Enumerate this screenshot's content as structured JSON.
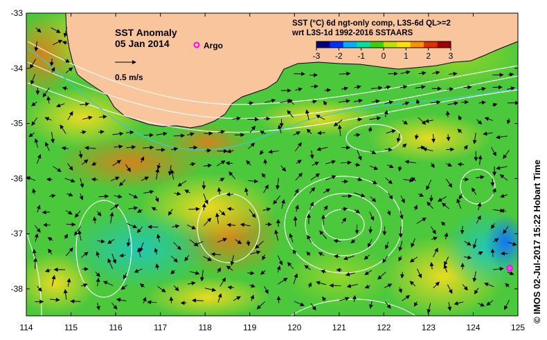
{
  "map": {
    "title": "SST Anomaly",
    "date": "05 Jan 2014",
    "argo_label": "Argo",
    "velocity_scale_label": "0.5 m/s",
    "product_line1": "SST (°C) 6d ngt-only comp, L3S-6d QL>=2",
    "product_line2": "wrt L3S-1d 1992-2016 SSTAARS",
    "credit": "© IMOS 02-Jul-2017 15:22 Hobart Time",
    "colorbar": {
      "ticks": [
        "-3",
        "-2",
        "-1",
        "0",
        "1",
        "2",
        "3"
      ],
      "colors": [
        "#000080",
        "#0030ff",
        "#00b0ff",
        "#00e0a0",
        "#40d000",
        "#c0e000",
        "#ffe000",
        "#ff9000",
        "#e03000",
        "#a00000"
      ]
    },
    "x_ticks": [
      "114",
      "115",
      "116",
      "117",
      "118",
      "119",
      "120",
      "121",
      "122",
      "123",
      "124",
      "125"
    ],
    "y_ticks": [
      "-33",
      "-34",
      "-35",
      "-36",
      "-37",
      "-38"
    ],
    "colors": {
      "land": "#f8c59d",
      "ocean_base": "#4cc83c",
      "contour": "#ffffff",
      "argo": "#ff00ff"
    }
  }
}
